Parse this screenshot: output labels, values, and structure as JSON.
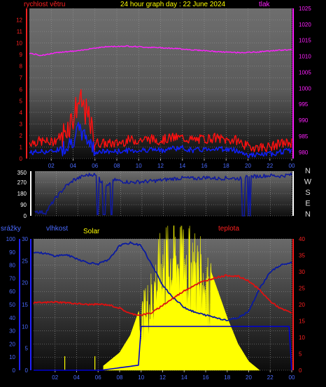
{
  "colors": {
    "wind_gust": "#ff1010",
    "wind_avg": "#1020ff",
    "pressure": "#ff20ff",
    "direction": "#101a9c",
    "humidity": "#0a1aa0",
    "temperature": "#e01010",
    "solar": "#ffff00",
    "rain": "#0000cc",
    "title": "#ffff00",
    "panel_bg": "#000000",
    "grid": "#9a9a9a"
  },
  "chart_data": [
    {
      "type": "line",
      "title": "24 hour graph day : 22 June 2024",
      "left_axis_label": "rychlost větru",
      "right_axis_label": "tlak",
      "x_ticks": [
        "02",
        "04",
        "06",
        "08",
        "10",
        "12",
        "14",
        "16",
        "18",
        "20",
        "22",
        "00"
      ],
      "y_left_ticks": [
        "12",
        "11",
        "10",
        "9",
        "8",
        "7",
        "6",
        "5",
        "4",
        "3",
        "2",
        "1",
        "0"
      ],
      "y_left_range": [
        0,
        13
      ],
      "y_right_ticks": [
        "1025",
        "1020",
        "1015",
        "1010",
        "1005",
        "1000",
        "995",
        "990",
        "985",
        "980"
      ],
      "y_right_range": [
        978,
        1025
      ],
      "grid": true,
      "x_hours": [
        0,
        1,
        2,
        3,
        4,
        4.5,
        5,
        5.5,
        6,
        7,
        8,
        9,
        10,
        11,
        12,
        13,
        14,
        15,
        16,
        17,
        18,
        19,
        20,
        21,
        22,
        23,
        24
      ],
      "series": [
        {
          "key": "gust",
          "values": [
            1.4,
            1.5,
            1.4,
            2.0,
            3.6,
            5.0,
            4.4,
            3.2,
            1.4,
            1.3,
            1.3,
            1.6,
            1.6,
            1.7,
            1.6,
            1.8,
            1.8,
            1.6,
            1.7,
            1.8,
            1.6,
            1.6,
            1.0,
            1.0,
            1.0,
            1.3,
            1.4
          ]
        },
        {
          "key": "avg",
          "values": [
            0.5,
            0.6,
            0.6,
            0.9,
            1.6,
            2.5,
            2.0,
            1.5,
            0.6,
            0.6,
            0.6,
            0.7,
            0.7,
            0.8,
            0.7,
            0.9,
            0.9,
            0.7,
            0.8,
            0.9,
            0.8,
            0.7,
            0.3,
            0.3,
            0.4,
            0.6,
            0.7
          ]
        },
        {
          "key": "pressure",
          "values": [
            1011.0,
            1010.3,
            1010.8,
            1011.4,
            1011.6,
            1011.7,
            1012.0,
            1012.4,
            1012.6,
            1013.0,
            1013.1,
            1013.2,
            1013.0,
            1012.8,
            1012.7,
            1012.5,
            1012.3,
            1012.0,
            1011.8,
            1011.5,
            1011.3,
            1011.2,
            1011.2,
            1011.4,
            1011.7,
            1011.9,
            1012.1
          ]
        }
      ]
    },
    {
      "type": "line",
      "title": "",
      "x_ticks": [],
      "y_left_ticks": [
        "350",
        "270",
        "180",
        "90",
        "0"
      ],
      "y_left_range": [
        0,
        360
      ],
      "direction_labels": [
        "N",
        "W",
        "S",
        "E",
        "N"
      ],
      "grid": true,
      "series": [
        {
          "key": "direction",
          "x_hours": [
            0,
            0.5,
            1,
            1.5,
            2,
            2.5,
            3,
            3.3,
            3.6,
            4,
            4.5,
            5,
            5.5,
            6,
            6.5,
            7,
            7.5,
            8,
            9,
            10,
            11,
            12,
            13,
            14,
            15,
            16,
            17,
            18,
            19,
            20,
            21,
            22,
            23,
            23.7,
            24
          ],
          "values": [
            40,
            30,
            25,
            90,
            150,
            200,
            250,
            260,
            290,
            300,
            320,
            330,
            335,
            300,
            240,
            260,
            290,
            280,
            270,
            275,
            280,
            290,
            300,
            305,
            300,
            310,
            300,
            305,
            300,
            315,
            320,
            325,
            320,
            330,
            330
          ]
        }
      ]
    },
    {
      "type": "line",
      "title": "",
      "labels": {
        "rain": "srážky",
        "humidity": "vlhkost",
        "solar": "Solar",
        "temperature": "teplota"
      },
      "x_ticks": [
        "02",
        "04",
        "06",
        "08",
        "10",
        "12",
        "14",
        "16",
        "18",
        "20",
        "22",
        "00"
      ],
      "y_humidity_ticks": [
        "100",
        "90",
        "80",
        "70",
        "60",
        "50",
        "40",
        "30",
        "20",
        "10",
        "0"
      ],
      "y_humidity_range": [
        0,
        100
      ],
      "y_rain_ticks": [
        "30",
        "25",
        "20",
        "15",
        "10",
        "5",
        "0"
      ],
      "y_rain_range": [
        0,
        30
      ],
      "y_temp_ticks": [
        "40",
        "35",
        "30",
        "25",
        "20",
        "15",
        "10",
        "5",
        "0"
      ],
      "y_temp_range": [
        0,
        40
      ],
      "grid": true,
      "x_hours": [
        0,
        1,
        2,
        3,
        4,
        5,
        6,
        7,
        8,
        9,
        10,
        11,
        12,
        13,
        14,
        15,
        16,
        17,
        18,
        19,
        20,
        21,
        22,
        23,
        24
      ],
      "series": [
        {
          "key": "humidity",
          "values": [
            90,
            89,
            87,
            88,
            85,
            82,
            81,
            84,
            95,
            97,
            95,
            80,
            65,
            55,
            48,
            44,
            42,
            40,
            38,
            40,
            45,
            62,
            75,
            80,
            82
          ]
        },
        {
          "key": "temperature",
          "values": [
            20.5,
            20.6,
            20.8,
            20.6,
            20.3,
            20.0,
            20.1,
            19.9,
            18.9,
            17.2,
            16.8,
            17.5,
            19.8,
            22.0,
            24.2,
            26.0,
            27.3,
            28.3,
            28.9,
            28.6,
            27.2,
            24.5,
            21.0,
            18.7,
            17.5
          ]
        },
        {
          "key": "solar_peak",
          "values": [
            0,
            0,
            0,
            0,
            0,
            0,
            0,
            2,
            4,
            8,
            15,
            22,
            31,
            33,
            32,
            30,
            26,
            19,
            12,
            6,
            2,
            0,
            0,
            0,
            0
          ]
        },
        {
          "key": "rain",
          "values": [
            0,
            0,
            0,
            0,
            0,
            0,
            0,
            0,
            0,
            0,
            10,
            10,
            10,
            10,
            10,
            10,
            10,
            10,
            10,
            10,
            10,
            10,
            10,
            10,
            0
          ]
        }
      ]
    }
  ]
}
